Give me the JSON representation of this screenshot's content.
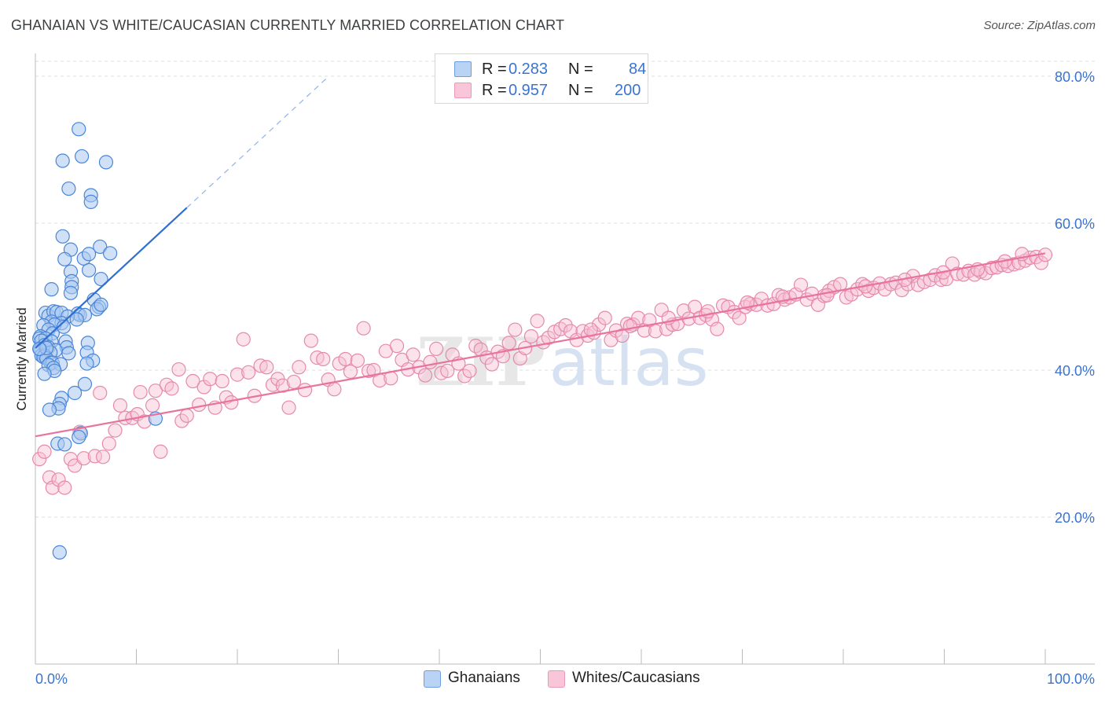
{
  "header": {
    "title": "GHANAIAN VS WHITE/CAUCASIAN CURRENTLY MARRIED CORRELATION CHART",
    "source": "Source: ZipAtlas.com"
  },
  "watermark": {
    "part1": "ZIP",
    "part2": "atlas"
  },
  "legend": {
    "ghanaians": {
      "r_label": "R =",
      "r_value": "0.283",
      "n_label": "N =",
      "n_value": "84"
    },
    "whites": {
      "r_label": "R =",
      "r_value": "0.957",
      "n_label": "N =",
      "n_value": "200"
    }
  },
  "bottom_legend": {
    "ghanaians": "Ghanaians",
    "whites": "Whites/Caucasians"
  },
  "colors": {
    "ghanaian_fill": "#aac8f0",
    "ghanaian_stroke": "#4a86d8",
    "ghanaian_line": "#2f6fd0",
    "white_fill": "#f6bfd2",
    "white_stroke": "#e68aab",
    "white_line": "#e8739c",
    "grid": "#dddddd",
    "axis_label": "#3a74d0"
  },
  "chart_data": {
    "type": "scatter",
    "title": "GHANAIAN VS WHITE/CAUCASIAN CURRENTLY MARRIED CORRELATION CHART",
    "xlabel": "",
    "ylabel": "Currently Married",
    "xlim": [
      0,
      100
    ],
    "ylim": [
      0,
      80
    ],
    "x_tick_labels": [
      "0.0%",
      "100.0%"
    ],
    "y_ticks": [
      20,
      40,
      60,
      80
    ],
    "y_tick_labels": [
      "20.0%",
      "40.0%",
      "60.0%",
      "80.0%"
    ],
    "grid": true,
    "series": [
      {
        "name": "Ghanaians",
        "r": 0.283,
        "n": 84,
        "trend": {
          "x0": 0,
          "y0": 43.0,
          "x1": 15,
          "y1": 62.1,
          "dash_to_x": 29
        },
        "points": [
          [
            4.3,
            72.8
          ],
          [
            2.7,
            68.5
          ],
          [
            4.6,
            69.1
          ],
          [
            7.0,
            68.3
          ],
          [
            3.3,
            64.7
          ],
          [
            5.5,
            63.8
          ],
          [
            5.5,
            62.9
          ],
          [
            2.7,
            58.2
          ],
          [
            3.5,
            56.4
          ],
          [
            4.8,
            55.2
          ],
          [
            6.4,
            56.8
          ],
          [
            7.4,
            55.9
          ],
          [
            5.3,
            55.8
          ],
          [
            2.9,
            55.1
          ],
          [
            3.5,
            53.4
          ],
          [
            5.3,
            53.6
          ],
          [
            3.6,
            52.1
          ],
          [
            6.5,
            52.4
          ],
          [
            3.6,
            51.3
          ],
          [
            1.6,
            51.0
          ],
          [
            3.5,
            50.5
          ],
          [
            5.8,
            49.6
          ],
          [
            6.3,
            48.6
          ],
          [
            6.1,
            48.3
          ],
          [
            1.0,
            47.8
          ],
          [
            1.3,
            47.4
          ],
          [
            1.8,
            48.0
          ],
          [
            2.1,
            47.9
          ],
          [
            2.6,
            47.8
          ],
          [
            4.2,
            47.7
          ],
          [
            4.4,
            47.5
          ],
          [
            4.9,
            47.5
          ],
          [
            3.2,
            47.3
          ],
          [
            1.6,
            46.6
          ],
          [
            2.6,
            46.4
          ],
          [
            1.9,
            46.2
          ],
          [
            0.8,
            46.1
          ],
          [
            1.3,
            45.5
          ],
          [
            1.7,
            45.0
          ],
          [
            0.5,
            44.6
          ],
          [
            0.4,
            44.3
          ],
          [
            1.0,
            44.3
          ],
          [
            0.6,
            44.0
          ],
          [
            1.6,
            43.9
          ],
          [
            3.0,
            43.9
          ],
          [
            5.2,
            43.7
          ],
          [
            0.9,
            43.4
          ],
          [
            1.3,
            43.1
          ],
          [
            3.1,
            43.1
          ],
          [
            0.5,
            42.8
          ],
          [
            2.0,
            42.7
          ],
          [
            1.5,
            42.4
          ],
          [
            5.1,
            42.4
          ],
          [
            0.6,
            42.0
          ],
          [
            0.9,
            42.0
          ],
          [
            0.8,
            41.8
          ],
          [
            1.1,
            41.6
          ],
          [
            5.7,
            41.3
          ],
          [
            1.5,
            41.0
          ],
          [
            1.7,
            41.0
          ],
          [
            2.5,
            40.8
          ],
          [
            5.1,
            40.9
          ],
          [
            1.3,
            40.7
          ],
          [
            1.8,
            40.3
          ],
          [
            1.9,
            39.9
          ],
          [
            0.9,
            39.5
          ],
          [
            4.9,
            38.1
          ],
          [
            3.9,
            36.9
          ],
          [
            2.6,
            36.2
          ],
          [
            2.4,
            35.4
          ],
          [
            2.3,
            34.8
          ],
          [
            1.4,
            34.6
          ],
          [
            11.9,
            33.4
          ],
          [
            4.5,
            31.4
          ],
          [
            2.2,
            30.0
          ],
          [
            2.9,
            29.9
          ],
          [
            4.3,
            30.9
          ],
          [
            2.4,
            15.2
          ],
          [
            1.1,
            43.0
          ],
          [
            3.3,
            42.3
          ],
          [
            0.4,
            42.9
          ],
          [
            2.8,
            45.9
          ],
          [
            4.1,
            46.9
          ],
          [
            6.5,
            48.9
          ]
        ]
      },
      {
        "name": "Whites/Caucasians",
        "r": 0.957,
        "n": 200,
        "trend": {
          "x0": 0,
          "y0": 31.0,
          "x1": 100,
          "y1": 55.9
        },
        "points": [
          [
            0.4,
            27.9
          ],
          [
            0.9,
            28.9
          ],
          [
            1.4,
            25.4
          ],
          [
            1.7,
            24.0
          ],
          [
            2.3,
            25.1
          ],
          [
            2.9,
            24.0
          ],
          [
            3.5,
            27.9
          ],
          [
            3.9,
            27.0
          ],
          [
            4.4,
            31.6
          ],
          [
            4.8,
            28.0
          ],
          [
            5.9,
            28.3
          ],
          [
            6.7,
            28.2
          ],
          [
            6.4,
            36.9
          ],
          [
            7.3,
            30.0
          ],
          [
            7.9,
            31.8
          ],
          [
            8.4,
            35.2
          ],
          [
            8.9,
            33.5
          ],
          [
            9.6,
            33.5
          ],
          [
            10.1,
            34.0
          ],
          [
            10.4,
            37.0
          ],
          [
            10.8,
            33.0
          ],
          [
            11.6,
            35.2
          ],
          [
            11.9,
            37.2
          ],
          [
            12.4,
            28.9
          ],
          [
            13.0,
            38.0
          ],
          [
            13.5,
            37.5
          ],
          [
            14.2,
            40.1
          ],
          [
            14.5,
            33.1
          ],
          [
            15.0,
            33.8
          ],
          [
            15.6,
            38.5
          ],
          [
            16.2,
            35.3
          ],
          [
            16.7,
            37.7
          ],
          [
            17.3,
            38.8
          ],
          [
            17.8,
            34.9
          ],
          [
            18.5,
            38.5
          ],
          [
            18.9,
            36.3
          ],
          [
            19.4,
            35.6
          ],
          [
            20.0,
            39.4
          ],
          [
            20.6,
            44.2
          ],
          [
            21.1,
            39.7
          ],
          [
            21.7,
            36.5
          ],
          [
            22.3,
            40.6
          ],
          [
            22.9,
            40.4
          ],
          [
            23.5,
            38.0
          ],
          [
            24.0,
            38.8
          ],
          [
            24.5,
            37.9
          ],
          [
            25.1,
            34.9
          ],
          [
            25.6,
            38.4
          ],
          [
            26.1,
            40.4
          ],
          [
            26.7,
            37.3
          ],
          [
            27.3,
            44.0
          ],
          [
            27.9,
            41.7
          ],
          [
            28.5,
            41.5
          ],
          [
            29.0,
            38.7
          ],
          [
            29.6,
            37.4
          ],
          [
            30.1,
            40.9
          ],
          [
            30.7,
            41.5
          ],
          [
            31.2,
            39.8
          ],
          [
            31.9,
            41.3
          ],
          [
            32.5,
            45.7
          ],
          [
            33.0,
            39.9
          ],
          [
            33.5,
            40.0
          ],
          [
            34.1,
            38.6
          ],
          [
            34.7,
            42.6
          ],
          [
            35.2,
            38.9
          ],
          [
            35.8,
            43.3
          ],
          [
            36.3,
            41.4
          ],
          [
            36.9,
            40.1
          ],
          [
            37.4,
            42.1
          ],
          [
            38.0,
            40.4
          ],
          [
            38.6,
            39.3
          ],
          [
            39.1,
            41.1
          ],
          [
            39.7,
            42.9
          ],
          [
            40.2,
            39.6
          ],
          [
            40.8,
            39.9
          ],
          [
            41.3,
            42.1
          ],
          [
            41.9,
            40.9
          ],
          [
            42.5,
            39.2
          ],
          [
            43.0,
            39.9
          ],
          [
            43.6,
            43.3
          ],
          [
            44.1,
            42.8
          ],
          [
            44.7,
            41.7
          ],
          [
            45.2,
            40.8
          ],
          [
            45.8,
            42.5
          ],
          [
            46.3,
            41.9
          ],
          [
            46.9,
            43.7
          ],
          [
            47.5,
            45.5
          ],
          [
            48.0,
            41.6
          ],
          [
            48.5,
            43.0
          ],
          [
            49.1,
            44.6
          ],
          [
            49.7,
            46.7
          ],
          [
            50.3,
            43.8
          ],
          [
            50.8,
            44.4
          ],
          [
            51.4,
            45.2
          ],
          [
            52.0,
            45.6
          ],
          [
            52.5,
            46.1
          ],
          [
            53.0,
            45.3
          ],
          [
            53.6,
            44.1
          ],
          [
            54.2,
            45.3
          ],
          [
            54.7,
            44.7
          ],
          [
            55.3,
            45.1
          ],
          [
            55.8,
            46.2
          ],
          [
            56.4,
            47.1
          ],
          [
            57.0,
            44.1
          ],
          [
            57.5,
            45.4
          ],
          [
            58.1,
            44.7
          ],
          [
            58.6,
            46.3
          ],
          [
            59.2,
            46.2
          ],
          [
            59.7,
            47.1
          ],
          [
            60.3,
            45.4
          ],
          [
            60.8,
            46.8
          ],
          [
            61.4,
            45.3
          ],
          [
            62.0,
            48.2
          ],
          [
            62.5,
            45.6
          ],
          [
            63.1,
            46.2
          ],
          [
            63.6,
            46.3
          ],
          [
            64.2,
            48.1
          ],
          [
            64.7,
            47.0
          ],
          [
            65.3,
            48.6
          ],
          [
            65.8,
            47.1
          ],
          [
            66.4,
            47.5
          ],
          [
            67.0,
            46.9
          ],
          [
            67.5,
            45.6
          ],
          [
            68.1,
            48.8
          ],
          [
            68.6,
            48.6
          ],
          [
            69.2,
            47.9
          ],
          [
            69.7,
            47.1
          ],
          [
            70.3,
            48.6
          ],
          [
            70.8,
            49.0
          ],
          [
            71.4,
            48.9
          ],
          [
            71.9,
            49.7
          ],
          [
            72.5,
            48.8
          ],
          [
            73.1,
            49.0
          ],
          [
            73.6,
            50.2
          ],
          [
            74.2,
            49.6
          ],
          [
            74.7,
            49.9
          ],
          [
            75.3,
            50.3
          ],
          [
            75.8,
            51.6
          ],
          [
            76.4,
            49.6
          ],
          [
            76.9,
            50.4
          ],
          [
            77.5,
            48.9
          ],
          [
            78.1,
            50.1
          ],
          [
            78.6,
            50.8
          ],
          [
            79.1,
            51.3
          ],
          [
            79.7,
            51.7
          ],
          [
            80.3,
            49.9
          ],
          [
            80.8,
            50.3
          ],
          [
            81.4,
            51.0
          ],
          [
            81.9,
            51.7
          ],
          [
            82.5,
            50.8
          ],
          [
            83.0,
            51.2
          ],
          [
            83.6,
            51.8
          ],
          [
            84.1,
            51.0
          ],
          [
            84.7,
            51.7
          ],
          [
            85.2,
            51.9
          ],
          [
            85.8,
            50.9
          ],
          [
            86.4,
            51.7
          ],
          [
            86.9,
            52.8
          ],
          [
            87.4,
            51.6
          ],
          [
            88.0,
            52.0
          ],
          [
            88.6,
            52.3
          ],
          [
            89.1,
            52.9
          ],
          [
            89.7,
            52.3
          ],
          [
            90.2,
            52.4
          ],
          [
            90.8,
            54.5
          ],
          [
            91.3,
            53.1
          ],
          [
            91.9,
            53.0
          ],
          [
            92.4,
            53.5
          ],
          [
            93.0,
            53.0
          ],
          [
            93.6,
            53.4
          ],
          [
            94.1,
            53.2
          ],
          [
            94.7,
            53.9
          ],
          [
            95.2,
            54.0
          ],
          [
            95.7,
            54.3
          ],
          [
            96.3,
            54.2
          ],
          [
            96.9,
            54.4
          ],
          [
            97.4,
            54.6
          ],
          [
            98.0,
            54.9
          ],
          [
            98.5,
            55.3
          ],
          [
            99.1,
            55.4
          ],
          [
            99.6,
            54.6
          ],
          [
            100.0,
            55.7
          ],
          [
            97.7,
            55.8
          ],
          [
            96.0,
            54.8
          ],
          [
            93.3,
            53.7
          ],
          [
            89.9,
            53.3
          ],
          [
            86.1,
            52.3
          ],
          [
            82.2,
            51.4
          ],
          [
            78.4,
            50.2
          ],
          [
            74.0,
            50.0
          ],
          [
            70.5,
            49.2
          ],
          [
            66.6,
            48.0
          ],
          [
            62.7,
            47.1
          ],
          [
            58.9,
            46.0
          ],
          [
            55.0,
            45.5
          ]
        ]
      }
    ]
  }
}
